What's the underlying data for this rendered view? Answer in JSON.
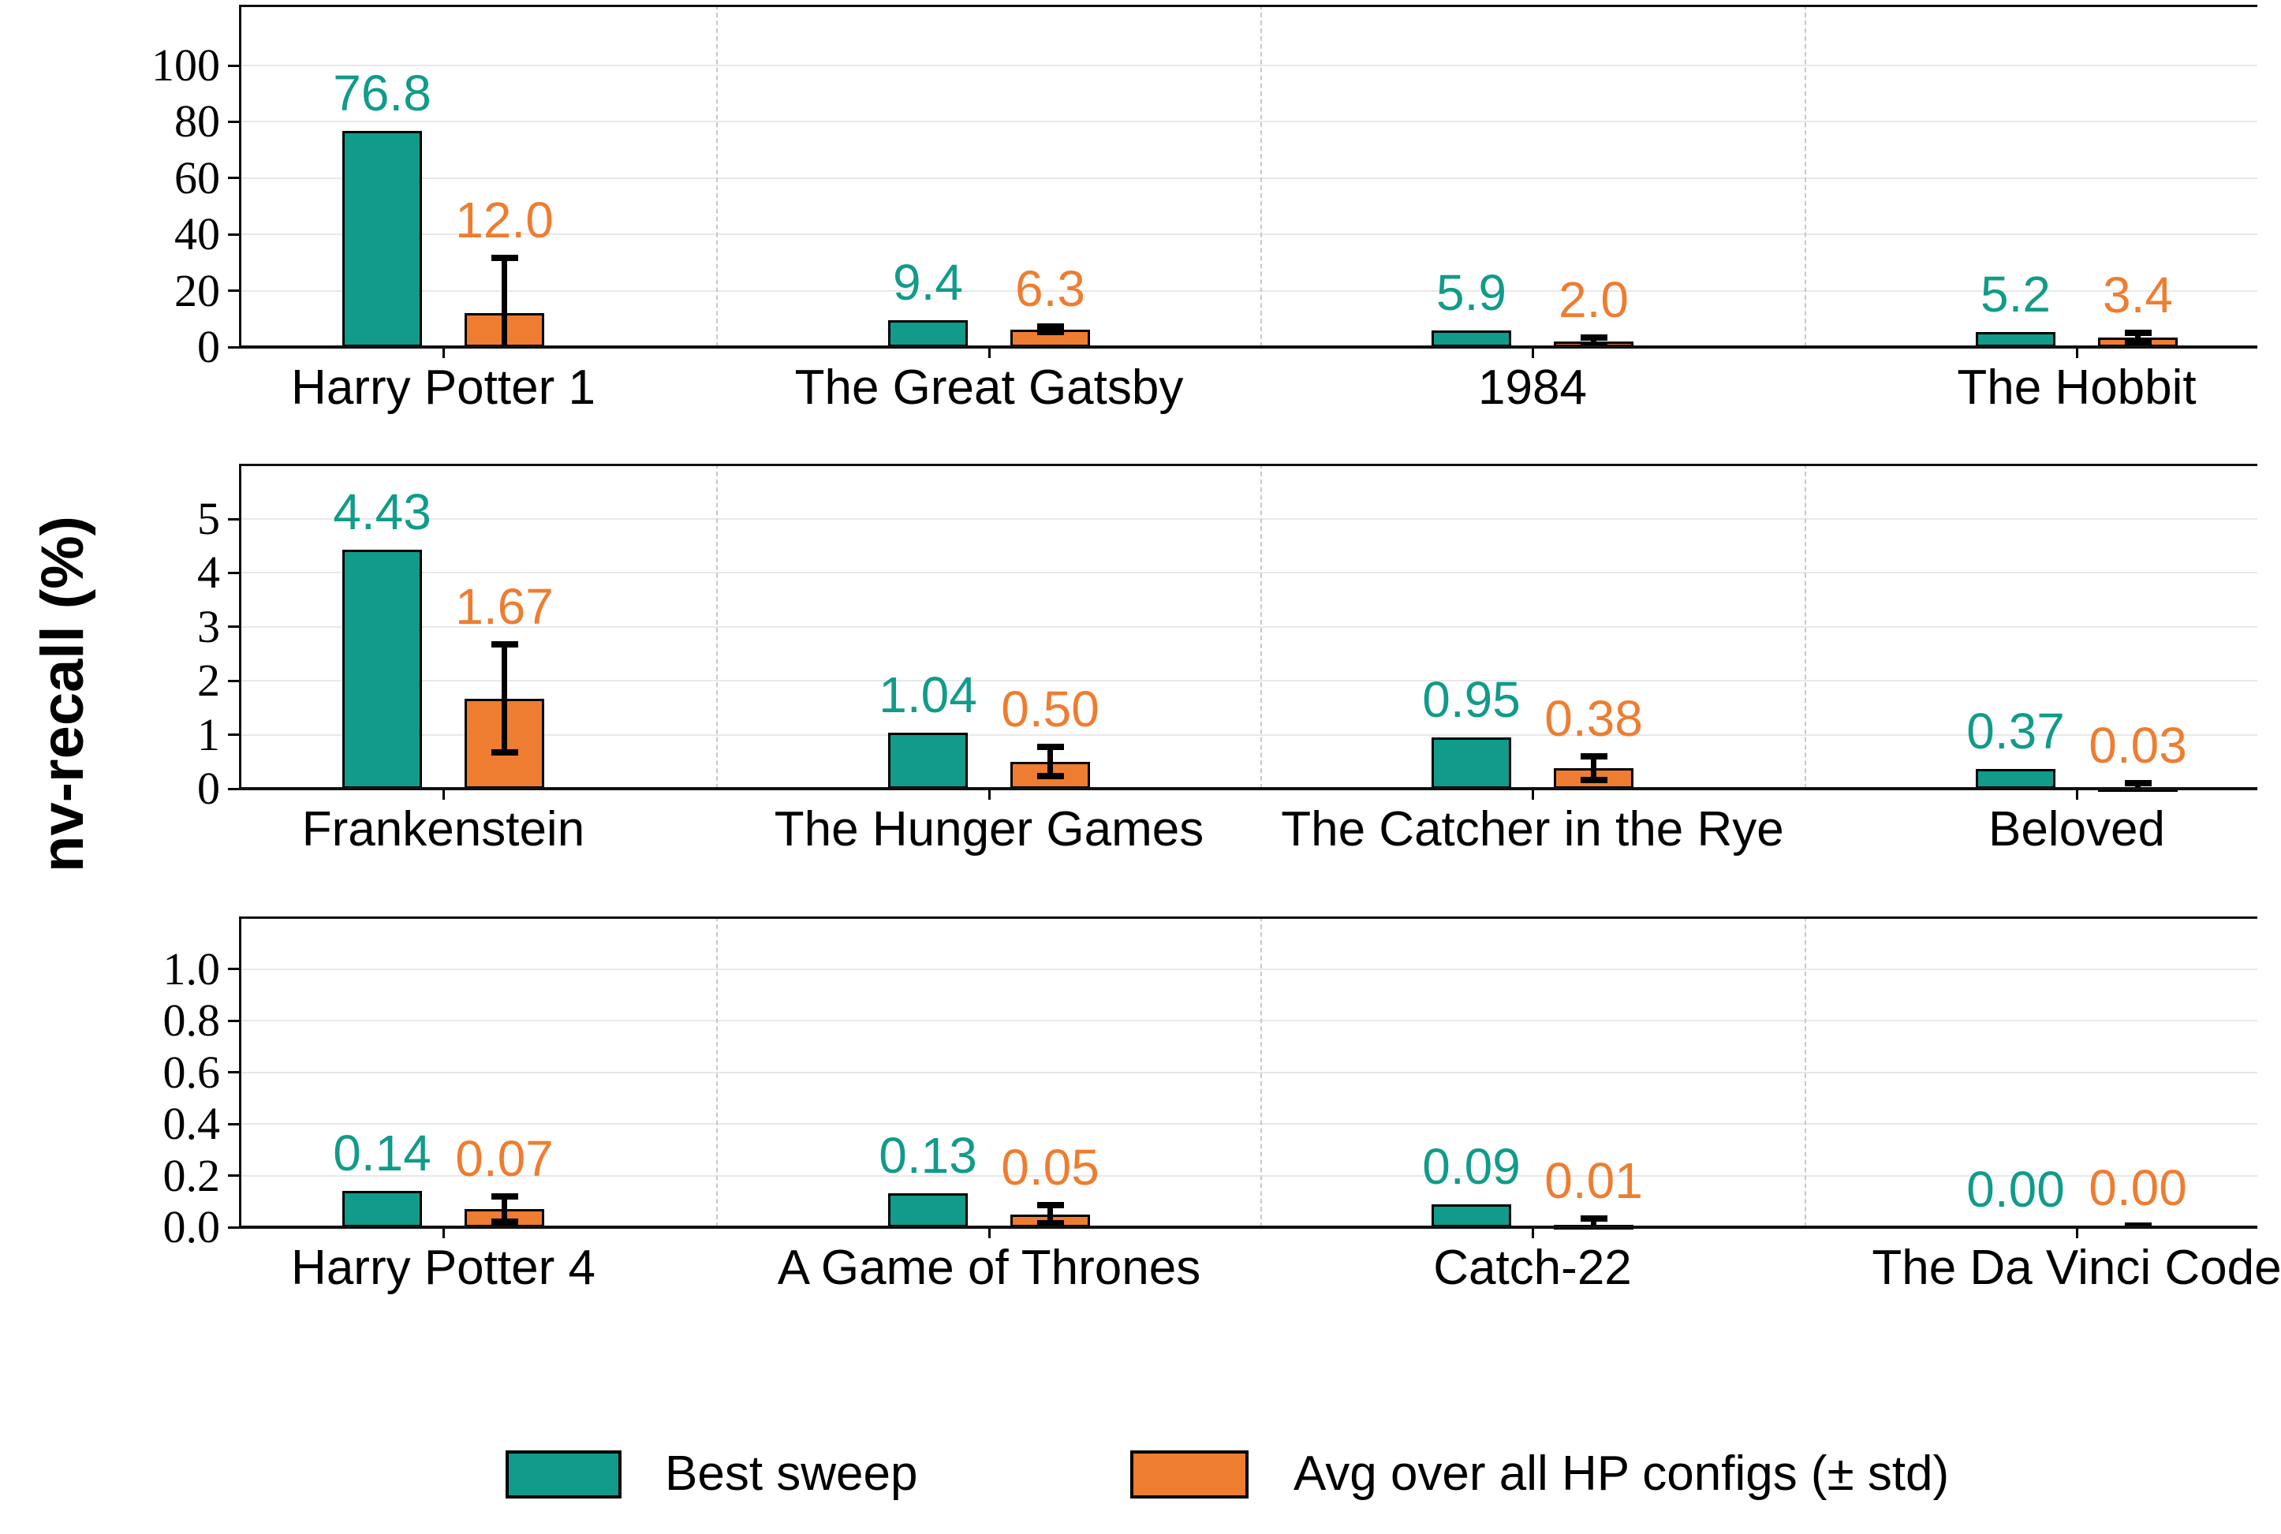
{
  "figure": {
    "ylabel": "nv-recall (%)"
  },
  "chart_data": {
    "type": "bar",
    "ylabel": "nv-recall (%)",
    "grid": true,
    "legend_position": "bottom",
    "colors": {
      "best": "#119b8a",
      "avg": "#ee7d31",
      "error": "#000000"
    },
    "legend": [
      {
        "label": "Best sweep",
        "color": "#119b8a"
      },
      {
        "label": "Avg over all HP configs (± std)",
        "color": "#ee7d31"
      }
    ],
    "subplots": [
      {
        "ylim": [
          0,
          120
        ],
        "yticks": [
          "0",
          "20",
          "40",
          "60",
          "80",
          "100"
        ],
        "ytick_values": [
          0,
          20,
          40,
          60,
          80,
          100
        ],
        "groups": [
          {
            "category": "Harry Potter 1",
            "best": 76.8,
            "best_label": "76.8",
            "avg": 12.0,
            "avg_label": "12.0",
            "std": 19.6
          },
          {
            "category": "The Great Gatsby",
            "best": 9.4,
            "best_label": "9.4",
            "avg": 6.3,
            "avg_label": "6.3",
            "std": 1.0
          },
          {
            "category": "1984",
            "best": 5.9,
            "best_label": "5.9",
            "avg": 2.0,
            "avg_label": "2.0",
            "std": 1.5
          },
          {
            "category": "The Hobbit",
            "best": 5.2,
            "best_label": "5.2",
            "avg": 3.4,
            "avg_label": "3.4",
            "std": 1.6
          }
        ]
      },
      {
        "ylim": [
          0,
          6
        ],
        "yticks": [
          "0",
          "1",
          "2",
          "3",
          "4",
          "5"
        ],
        "ytick_values": [
          0,
          1,
          2,
          3,
          4,
          5
        ],
        "groups": [
          {
            "category": "Frankenstein",
            "best": 4.43,
            "best_label": "4.43",
            "avg": 1.67,
            "avg_label": "1.67",
            "std": 1.0
          },
          {
            "category": "The Hunger Games",
            "best": 1.04,
            "best_label": "1.04",
            "avg": 0.5,
            "avg_label": "0.50",
            "std": 0.27
          },
          {
            "category": "The Catcher in the Rye",
            "best": 0.95,
            "best_label": "0.95",
            "avg": 0.38,
            "avg_label": "0.38",
            "std": 0.22
          },
          {
            "category": "Beloved",
            "best": 0.37,
            "best_label": "0.37",
            "avg": 0.03,
            "avg_label": "0.03",
            "std": 0.07
          }
        ]
      },
      {
        "ylim": [
          0,
          1.2
        ],
        "yticks": [
          "0.0",
          "0.2",
          "0.4",
          "0.6",
          "0.8",
          "1.0"
        ],
        "ytick_values": [
          0,
          0.2,
          0.4,
          0.6,
          0.8,
          1.0
        ],
        "groups": [
          {
            "category": "Harry Potter 4",
            "best": 0.14,
            "best_label": "0.14",
            "avg": 0.07,
            "avg_label": "0.07",
            "std": 0.05
          },
          {
            "category": "A Game of Thrones",
            "best": 0.13,
            "best_label": "0.13",
            "avg": 0.05,
            "avg_label": "0.05",
            "std": 0.035
          },
          {
            "category": "Catch-22",
            "best": 0.09,
            "best_label": "0.09",
            "avg": 0.01,
            "avg_label": "0.01",
            "std": 0.025
          },
          {
            "category": "The Da Vinci Code",
            "best": 0.0,
            "best_label": "0.00",
            "avg": 0.0,
            "avg_label": "0.00",
            "std": 0.006
          }
        ]
      }
    ]
  }
}
